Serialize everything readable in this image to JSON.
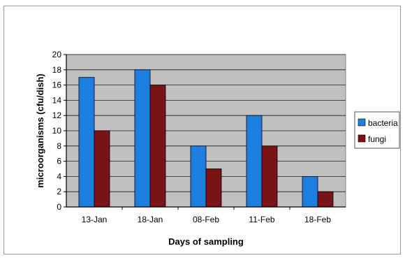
{
  "chart_data": {
    "type": "bar",
    "categories": [
      "13-Jan",
      "18-Jan",
      "08-Feb",
      "11-Feb",
      "18-Feb"
    ],
    "series": [
      {
        "name": "bacteria",
        "values": [
          17,
          18,
          8,
          12,
          4
        ],
        "color": "#1f7fe0"
      },
      {
        "name": "fungi",
        "values": [
          10,
          16,
          5,
          8,
          2
        ],
        "color": "#7a1414"
      }
    ],
    "title": "",
    "xlabel": "Days of sampling",
    "ylabel": "microorganisms (cfu/dish)",
    "ylim": [
      0,
      20
    ],
    "yticks": [
      0,
      2,
      4,
      6,
      8,
      10,
      12,
      14,
      16,
      18,
      20
    ],
    "grid": true,
    "plot_background": "#c0c0c0",
    "legend_position": "right"
  }
}
